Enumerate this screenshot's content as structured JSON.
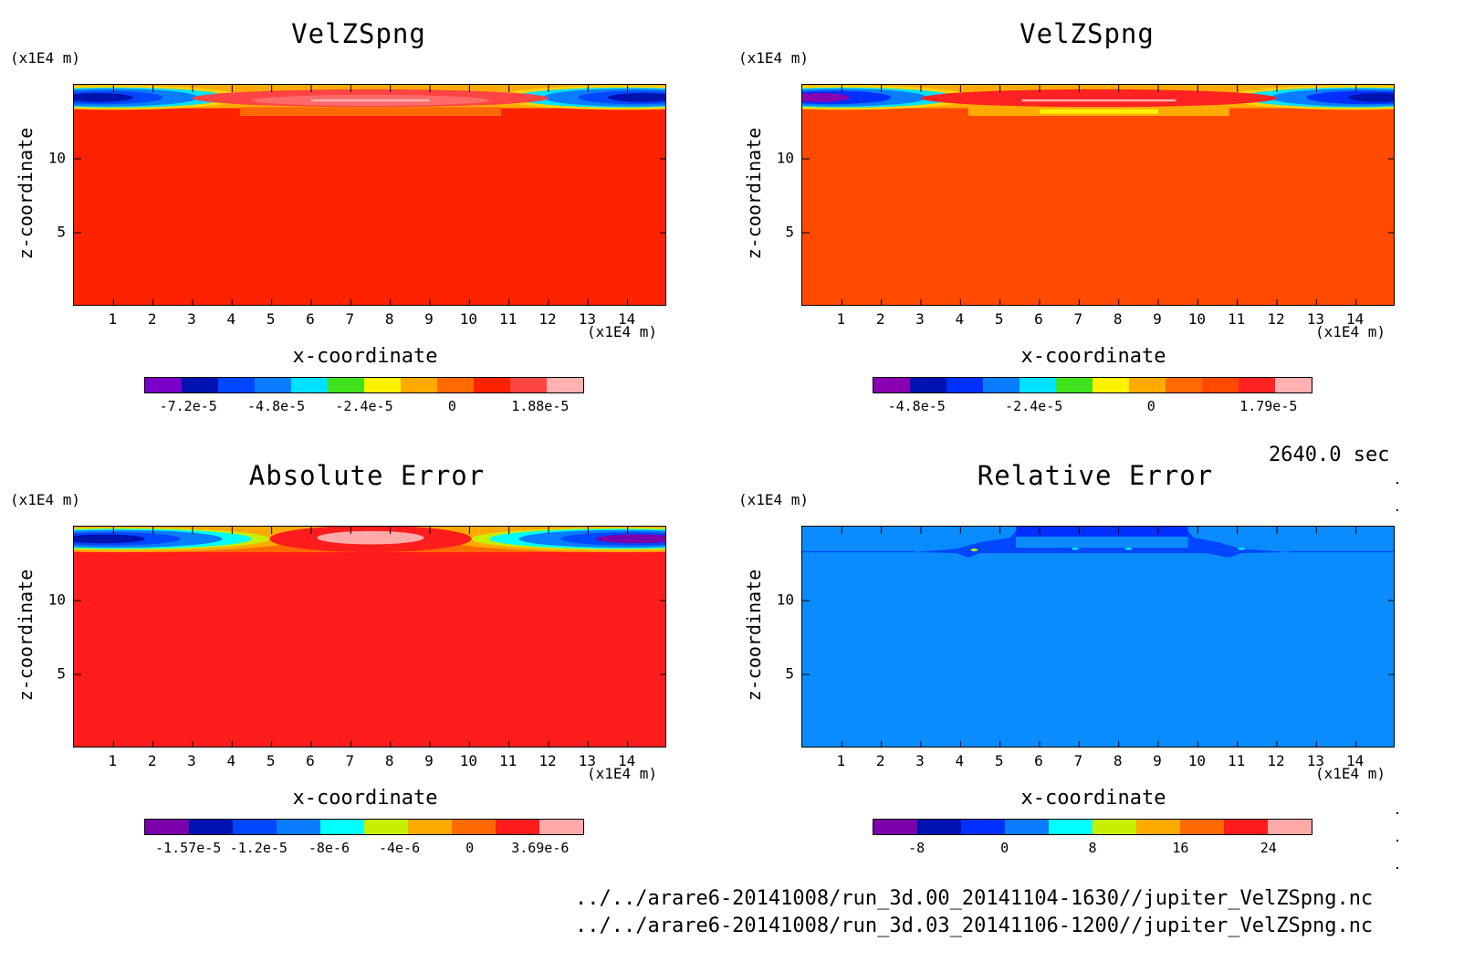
{
  "time_label": "2640.0 sec",
  "file_paths": [
    "../../arare6-20141008/run_3d.00_20141104-1630//jupiter_VelZSpng.nc",
    "../../arare6-20141008/run_3d.03_20141106-1200//jupiter_VelZSpng.nc"
  ],
  "chart_data": [
    {
      "type": "heatmap",
      "title": "VelZSpng",
      "xlabel": "x-coordinate",
      "ylabel": "z-coordinate",
      "x_unit": "(x1E4 m)",
      "y_unit": "(x1E4 m)",
      "xlim": [
        0,
        15
      ],
      "ylim": [
        0,
        15
      ],
      "x_ticks": [
        "1",
        "2",
        "3",
        "4",
        "5",
        "6",
        "7",
        "8",
        "9",
        "10",
        "11",
        "12",
        "13",
        "14"
      ],
      "y_ticks": [
        "5",
        "10"
      ],
      "background_color": "#ff2200",
      "colorbar": {
        "colors": [
          "#7a00c8",
          "#0012b0",
          "#0047ff",
          "#0a7dff",
          "#00e2ff",
          "#3fe21c",
          "#fff200",
          "#ffaa00",
          "#ff6a00",
          "#ff2200",
          "#ff4444",
          "#ffb0b0"
        ],
        "labels": [
          "-7.2e-5",
          "-4.8e-5",
          "-2.4e-5",
          "0",
          "1.88e-5"
        ]
      }
    },
    {
      "type": "heatmap",
      "title": "VelZSpng",
      "xlabel": "x-coordinate",
      "ylabel": "z-coordinate",
      "x_unit": "(x1E4 m)",
      "y_unit": "(x1E4 m)",
      "xlim": [
        0,
        15
      ],
      "ylim": [
        0,
        15
      ],
      "x_ticks": [
        "1",
        "2",
        "3",
        "4",
        "5",
        "6",
        "7",
        "8",
        "9",
        "10",
        "11",
        "12",
        "13",
        "14"
      ],
      "y_ticks": [
        "5",
        "10"
      ],
      "background_color": "#ff4a00",
      "colorbar": {
        "colors": [
          "#8800b0",
          "#0012b0",
          "#0030ff",
          "#0a7dff",
          "#00e2ff",
          "#3fe21c",
          "#fff200",
          "#ffaa00",
          "#ff6a00",
          "#ff4a00",
          "#ff2222",
          "#ffb0b0"
        ],
        "labels": [
          "-4.8e-5",
          "-2.4e-5",
          "0",
          "1.79e-5"
        ]
      }
    },
    {
      "type": "heatmap",
      "title": "Absolute Error",
      "xlabel": "x-coordinate",
      "ylabel": "z-coordinate",
      "x_unit": "(x1E4 m)",
      "y_unit": "(x1E4 m)",
      "xlim": [
        0,
        15
      ],
      "ylim": [
        0,
        15
      ],
      "x_ticks": [
        "1",
        "2",
        "3",
        "4",
        "5",
        "6",
        "7",
        "8",
        "9",
        "10",
        "11",
        "12",
        "13",
        "14"
      ],
      "y_ticks": [
        "5",
        "10"
      ],
      "background_color": "#ff1c1c",
      "colorbar": {
        "colors": [
          "#7a00aa",
          "#0012b0",
          "#0047ff",
          "#0a7dff",
          "#00ffff",
          "#c8ee00",
          "#ffaa00",
          "#ff6a00",
          "#ff1c1c",
          "#ffaaaa"
        ],
        "labels": [
          "-1.57e-5",
          "-1.2e-5",
          "-8e-6",
          "-4e-6",
          "0",
          "3.69e-6"
        ]
      }
    },
    {
      "type": "heatmap",
      "title": "Relative Error",
      "xlabel": "x-coordinate",
      "ylabel": "z-coordinate",
      "x_unit": "(x1E4 m)",
      "y_unit": "(x1E4 m)",
      "xlim": [
        0,
        15
      ],
      "ylim": [
        0,
        15
      ],
      "x_ticks": [
        "1",
        "2",
        "3",
        "4",
        "5",
        "6",
        "7",
        "8",
        "9",
        "10",
        "11",
        "12",
        "13",
        "14"
      ],
      "y_ticks": [
        "5",
        "10"
      ],
      "background_color": "#0a8cff",
      "colorbar": {
        "colors": [
          "#7a00aa",
          "#0012b0",
          "#0030ff",
          "#0a7dff",
          "#00ffff",
          "#c8ee00",
          "#ffaa00",
          "#ff6a00",
          "#ff1c1c",
          "#ffaaaa"
        ],
        "labels": [
          "-8",
          "0",
          "8",
          "16",
          "24"
        ]
      }
    }
  ]
}
